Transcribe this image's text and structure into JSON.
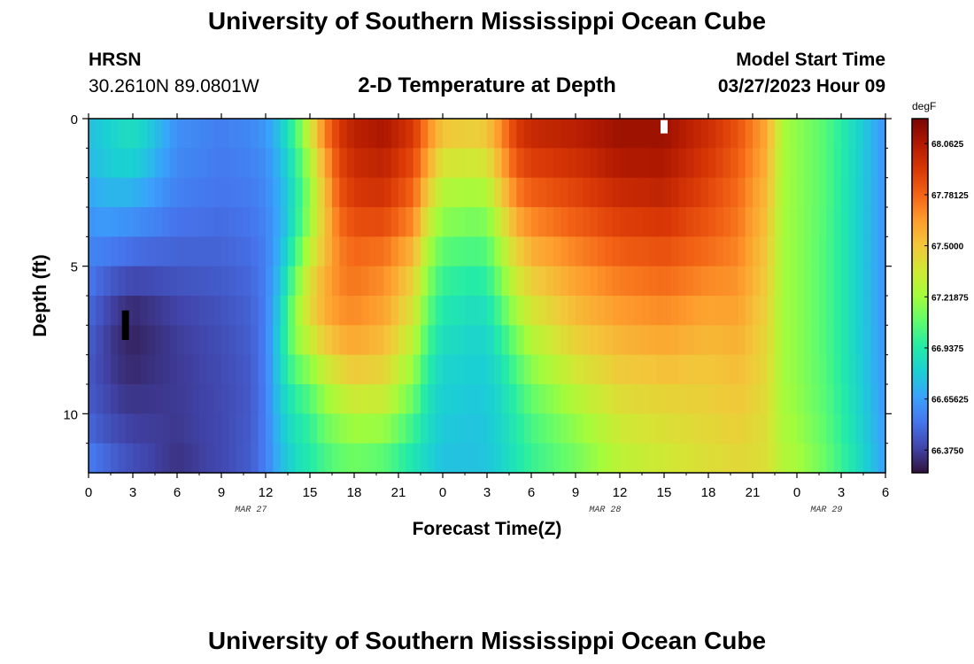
{
  "header": {
    "title": "University of Southern Mississippi Ocean Cube",
    "station_name": "HRSN",
    "station_coords": "30.2610N  89.0801W",
    "plot_title": "2-D Temperature at Depth",
    "model_start_label": "Model Start Time",
    "model_start_time": "03/27/2023 Hour 09"
  },
  "footer": {
    "title": "University of Southern Mississippi Ocean Cube"
  },
  "chart_data": {
    "type": "heatmap",
    "title": "2-D Temperature at Depth",
    "xlabel": "Forecast Time(Z)",
    "ylabel": "Depth (ft)",
    "x_hours_range": [
      0,
      54
    ],
    "xlim": [
      0,
      54
    ],
    "ylim": [
      0,
      12
    ],
    "y_inverted": true,
    "x_tick_labels": [
      "0",
      "3",
      "6",
      "9",
      "12",
      "15",
      "18",
      "21",
      "0",
      "3",
      "6",
      "9",
      "12",
      "15",
      "18",
      "21",
      "0",
      "3",
      "6"
    ],
    "x_date_labels": [
      {
        "hour": 11,
        "text": "MAR 27"
      },
      {
        "hour": 35,
        "text": "MAR 28"
      },
      {
        "hour": 50,
        "text": "MAR 29"
      }
    ],
    "y_tick_labels": [
      {
        "value": 0,
        "text": "0"
      },
      {
        "value": 5,
        "text": "5"
      },
      {
        "value": 10,
        "text": "10"
      }
    ],
    "colorbar": {
      "unit": "degF",
      "vmin": 66.25,
      "vmax": 68.2,
      "ticks": [
        {
          "value": 68.0625,
          "text": "68.0625"
        },
        {
          "value": 67.78125,
          "text": "67.78125"
        },
        {
          "value": 67.5,
          "text": "67.5000"
        },
        {
          "value": 67.21875,
          "text": "67.21875"
        },
        {
          "value": 66.9375,
          "text": "66.9375"
        },
        {
          "value": 66.65625,
          "text": "66.65625"
        },
        {
          "value": 66.375,
          "text": "66.3750"
        }
      ],
      "colormap": [
        "#30123b",
        "#4145ab",
        "#4675ed",
        "#39a2fc",
        "#1bcfd4",
        "#24eca6",
        "#61fc6c",
        "#a4fc3b",
        "#d1e834",
        "#f3c63a",
        "#fe9b2d",
        "#f36315",
        "#d93806",
        "#b11901",
        "#7a0402"
      ]
    },
    "depths_ft": [
      0,
      1,
      2,
      3,
      4,
      5,
      6,
      7,
      8,
      9,
      10,
      11,
      12
    ],
    "profiles": [
      {
        "hour": 0,
        "temps": [
          66.76,
          66.76,
          66.72,
          66.65,
          66.6,
          66.55,
          66.52,
          66.48,
          66.45,
          66.45,
          66.46,
          66.52,
          66.58
        ]
      },
      {
        "hour": 1,
        "temps": [
          66.8,
          66.8,
          66.76,
          66.68,
          66.6,
          66.52,
          66.44,
          66.4,
          66.38,
          66.4,
          66.42,
          66.46,
          66.54
        ]
      },
      {
        "hour": 2,
        "temps": [
          66.86,
          66.84,
          66.78,
          66.68,
          66.58,
          66.48,
          66.38,
          66.33,
          66.33,
          66.35,
          66.38,
          66.42,
          66.48
        ]
      },
      {
        "hour": 3,
        "temps": [
          66.88,
          66.86,
          66.78,
          66.66,
          66.56,
          66.46,
          66.34,
          66.3,
          66.3,
          66.33,
          66.36,
          66.39,
          66.44
        ]
      },
      {
        "hour": 4,
        "temps": [
          66.82,
          66.8,
          66.72,
          66.63,
          66.54,
          66.45,
          66.36,
          66.32,
          66.32,
          66.34,
          66.36,
          66.38,
          66.4
        ]
      },
      {
        "hour": 6,
        "temps": [
          66.62,
          66.6,
          66.58,
          66.55,
          66.5,
          66.46,
          66.4,
          66.37,
          66.36,
          66.36,
          66.36,
          66.35,
          66.33
        ]
      },
      {
        "hour": 9,
        "temps": [
          66.56,
          66.55,
          66.54,
          66.52,
          66.49,
          66.47,
          66.44,
          66.42,
          66.41,
          66.4,
          66.4,
          66.4,
          66.4
        ]
      },
      {
        "hour": 11,
        "temps": [
          66.6,
          66.58,
          66.56,
          66.54,
          66.52,
          66.5,
          66.48,
          66.47,
          66.46,
          66.45,
          66.45,
          66.46,
          66.46
        ]
      },
      {
        "hour": 12,
        "temps": [
          66.65,
          66.62,
          66.6,
          66.58,
          66.57,
          66.56,
          66.56,
          66.56,
          66.56,
          66.56,
          66.56,
          66.56,
          66.56
        ]
      },
      {
        "hour": 13,
        "temps": [
          66.8,
          66.76,
          66.72,
          66.7,
          66.7,
          66.75,
          66.8,
          66.85,
          66.85,
          66.82,
          66.78,
          66.75,
          66.72
        ]
      },
      {
        "hour": 14,
        "temps": [
          67.05,
          66.98,
          66.92,
          66.9,
          66.95,
          67.05,
          67.15,
          67.2,
          67.12,
          67.0,
          66.92,
          66.88,
          66.85
        ]
      },
      {
        "hour": 15,
        "temps": [
          67.4,
          67.3,
          67.2,
          67.18,
          67.25,
          67.35,
          67.45,
          67.4,
          67.25,
          67.1,
          67.0,
          66.95,
          66.92
        ]
      },
      {
        "hour": 16,
        "temps": [
          67.75,
          67.65,
          67.55,
          67.5,
          67.5,
          67.55,
          67.6,
          67.55,
          67.4,
          67.25,
          67.15,
          67.05,
          67.0
        ]
      },
      {
        "hour": 17,
        "temps": [
          67.95,
          67.9,
          67.85,
          67.8,
          67.72,
          67.7,
          67.7,
          67.62,
          67.5,
          67.35,
          67.22,
          67.12,
          67.05
        ]
      },
      {
        "hour": 18,
        "temps": [
          68.05,
          68.0,
          67.95,
          67.9,
          67.8,
          67.75,
          67.72,
          67.65,
          67.55,
          67.42,
          67.28,
          67.15,
          67.08
        ]
      },
      {
        "hour": 20,
        "temps": [
          68.1,
          68.05,
          67.98,
          67.92,
          67.8,
          67.7,
          67.65,
          67.58,
          67.5,
          67.4,
          67.28,
          67.12,
          67.02
        ]
      },
      {
        "hour": 22,
        "temps": [
          67.95,
          67.9,
          67.82,
          67.75,
          67.62,
          67.5,
          67.42,
          67.35,
          67.25,
          67.15,
          67.05,
          66.95,
          66.88
        ]
      },
      {
        "hour": 23,
        "temps": [
          67.72,
          67.65,
          67.55,
          67.42,
          67.3,
          67.2,
          67.12,
          67.05,
          66.98,
          66.92,
          66.88,
          66.85,
          66.82
        ]
      },
      {
        "hour": 24,
        "temps": [
          67.55,
          67.45,
          67.32,
          67.22,
          67.12,
          67.02,
          66.95,
          66.9,
          66.85,
          66.82,
          66.8,
          66.78,
          66.76
        ]
      },
      {
        "hour": 26,
        "temps": [
          67.5,
          67.42,
          67.3,
          67.18,
          67.08,
          66.98,
          66.9,
          66.85,
          66.82,
          66.8,
          66.78,
          66.77,
          66.76
        ]
      },
      {
        "hour": 27,
        "temps": [
          67.55,
          67.45,
          67.32,
          67.2,
          67.1,
          67.0,
          66.92,
          66.86,
          66.82,
          66.8,
          66.79,
          66.78,
          66.77
        ]
      },
      {
        "hour": 28,
        "temps": [
          67.72,
          67.65,
          67.55,
          67.42,
          67.3,
          67.2,
          67.1,
          67.0,
          66.93,
          66.88,
          66.85,
          66.84,
          66.83
        ]
      },
      {
        "hour": 29,
        "temps": [
          67.95,
          67.88,
          67.78,
          67.65,
          67.52,
          67.4,
          67.3,
          67.18,
          67.08,
          67.0,
          66.95,
          66.92,
          66.9
        ]
      },
      {
        "hour": 30,
        "temps": [
          68.02,
          67.95,
          67.85,
          67.75,
          67.62,
          67.52,
          67.42,
          67.32,
          67.22,
          67.12,
          67.05,
          67.0,
          66.98
        ]
      },
      {
        "hour": 33,
        "temps": [
          68.06,
          68.0,
          67.92,
          67.85,
          67.75,
          67.65,
          67.58,
          67.5,
          67.42,
          67.32,
          67.22,
          67.15,
          67.1
        ]
      },
      {
        "hour": 36,
        "temps": [
          68.12,
          68.1,
          68.02,
          67.95,
          67.85,
          67.76,
          67.68,
          67.6,
          67.52,
          67.45,
          67.38,
          67.32,
          67.28
        ]
      },
      {
        "hour": 39,
        "temps": [
          68.12,
          68.1,
          68.04,
          67.98,
          67.88,
          67.8,
          67.72,
          67.64,
          67.56,
          67.48,
          67.42,
          67.38,
          67.34
        ]
      },
      {
        "hour": 42,
        "temps": [
          67.98,
          67.95,
          67.9,
          67.85,
          67.8,
          67.72,
          67.65,
          67.58,
          67.52,
          67.48,
          67.45,
          67.42,
          67.4
        ]
      },
      {
        "hour": 44,
        "temps": [
          67.85,
          67.82,
          67.78,
          67.75,
          67.72,
          67.68,
          67.64,
          67.6,
          67.55,
          67.52,
          67.48,
          67.45,
          67.42
        ]
      },
      {
        "hour": 46,
        "temps": [
          67.6,
          67.58,
          67.55,
          67.52,
          67.5,
          67.48,
          67.46,
          67.44,
          67.43,
          67.42,
          67.41,
          67.4,
          67.4
        ]
      },
      {
        "hour": 47,
        "temps": [
          67.25,
          67.25,
          67.24,
          67.24,
          67.23,
          67.23,
          67.23,
          67.23,
          67.23,
          67.23,
          67.24,
          67.26,
          67.28
        ]
      },
      {
        "hour": 48,
        "temps": [
          67.18,
          67.18,
          67.18,
          67.18,
          67.18,
          67.18,
          67.18,
          67.18,
          67.18,
          67.18,
          67.2,
          67.22,
          67.25
        ]
      },
      {
        "hour": 50,
        "temps": [
          67.05,
          67.05,
          67.05,
          67.05,
          67.04,
          67.04,
          67.04,
          67.04,
          67.04,
          67.05,
          67.06,
          67.08,
          67.1
        ]
      },
      {
        "hour": 52,
        "temps": [
          66.85,
          66.85,
          66.84,
          66.84,
          66.84,
          66.84,
          66.84,
          66.84,
          66.84,
          66.85,
          66.86,
          66.88,
          66.9
        ]
      },
      {
        "hour": 54,
        "temps": [
          66.62,
          66.62,
          66.62,
          66.62,
          66.62,
          66.62,
          66.62,
          66.62,
          66.63,
          66.63,
          66.64,
          66.65,
          66.66
        ]
      }
    ],
    "markers": [
      {
        "name": "missing-data-marker-white",
        "hour": 39,
        "depth_range": [
          0.05,
          0.5
        ],
        "color": "#ffffff"
      },
      {
        "name": "missing-data-marker-black",
        "hour": 2.5,
        "depth_range": [
          6.5,
          7.5
        ],
        "color": "#000000"
      }
    ]
  }
}
